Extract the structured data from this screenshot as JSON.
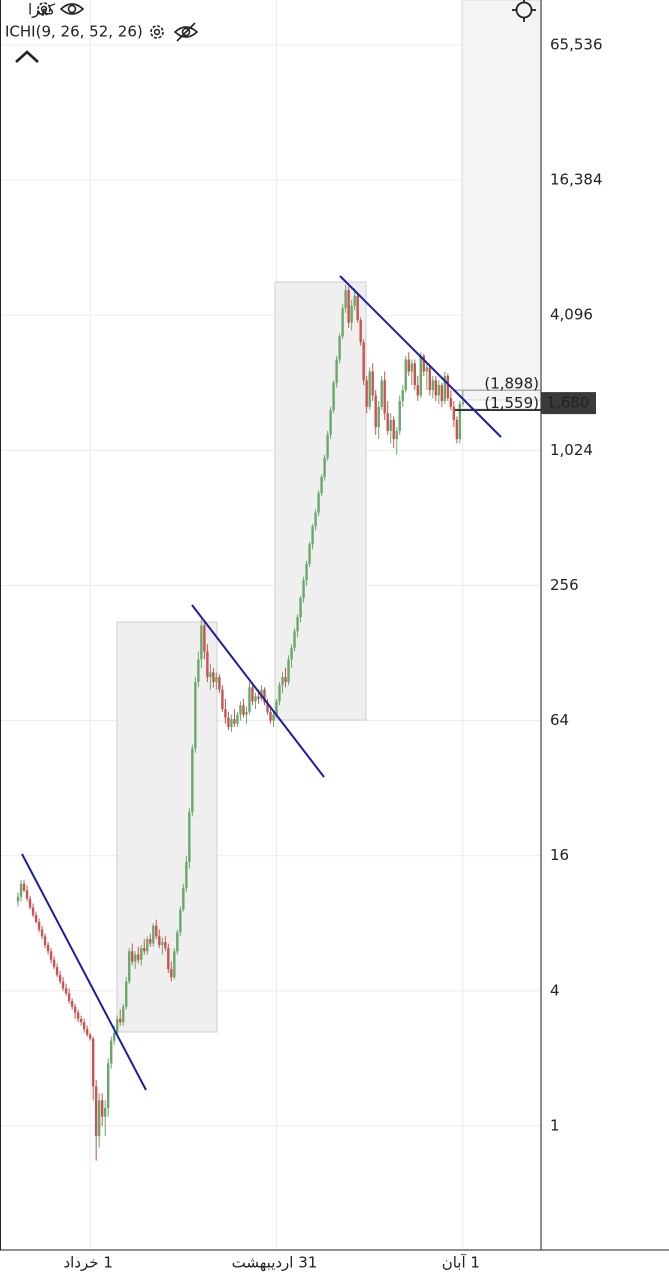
{
  "chart_data": {
    "type": "candlestick",
    "title": "کفرا",
    "subtitle": "ICHI(9, 26, 52, 26)",
    "log_scale": true,
    "grid": true,
    "up_color": "#6aa86a",
    "down_color": "#c9534f",
    "xlim": [
      0,
      180
    ],
    "xticks": [
      {
        "value": 30,
        "label": "1 خرداد"
      },
      {
        "value": 92,
        "label": "31 اردیبهشت"
      },
      {
        "value": 154,
        "label": "1 آبان"
      }
    ],
    "ylim": [
      0.28,
      104000
    ],
    "yticks": [
      1,
      4,
      16,
      64,
      256,
      {
        "value": 1024,
        "label": "1,024"
      },
      {
        "value": 4096,
        "label": "4,096"
      },
      {
        "value": 16384,
        "label": "16,384"
      },
      {
        "value": 65536,
        "label": "65,536"
      }
    ],
    "price_lines": [
      {
        "value": 1898,
        "label": "(1,898)"
      },
      {
        "value": 1559,
        "label": "(1,559)"
      }
    ],
    "last_price": {
      "value": 1680,
      "label": "1,680"
    },
    "x": [
      6,
      7,
      8,
      9,
      10,
      11,
      12,
      13,
      14,
      15,
      16,
      17,
      18,
      19,
      20,
      21,
      22,
      23,
      24,
      25,
      26,
      27,
      28,
      29,
      30,
      31,
      32,
      33,
      34,
      35,
      36,
      37,
      38,
      39,
      40,
      41,
      42,
      43,
      44,
      45,
      46,
      47,
      48,
      49,
      50,
      51,
      52,
      53,
      54,
      55,
      56,
      57,
      58,
      59,
      60,
      61,
      62,
      63,
      64,
      65,
      66,
      67,
      68,
      69,
      70,
      71,
      72,
      73,
      74,
      75,
      76,
      77,
      78,
      79,
      80,
      81,
      82,
      83,
      84,
      85,
      86,
      87,
      88,
      89,
      90,
      91,
      92,
      93,
      94,
      95,
      96,
      97,
      98,
      99,
      100,
      101,
      102,
      103,
      104,
      105,
      106,
      107,
      108,
      109,
      110,
      111,
      112,
      113,
      114,
      115,
      116,
      117,
      118,
      119,
      120,
      121,
      122,
      123,
      124,
      125,
      126,
      127,
      128,
      129,
      130,
      131,
      132,
      133,
      134,
      135,
      136,
      137,
      138,
      139,
      140,
      141,
      142,
      143,
      144,
      145,
      146,
      147,
      148,
      149,
      150,
      151,
      152,
      153,
      154
    ],
    "open": [
      10,
      10.5,
      12,
      11.2,
      10.3,
      9.4,
      8.7,
      8.1,
      7.5,
      7,
      6.4,
      6,
      5.5,
      5.1,
      4.7,
      4.4,
      4.1,
      3.9,
      3.6,
      3.4,
      3.2,
      3.0,
      2.9,
      2.7,
      2.55,
      2.45,
      1.5,
      0.9,
      1.3,
      1.1,
      1.2,
      1.9,
      2.4,
      2.6,
      3.0,
      2.9,
      3.4,
      4.4,
      6.0,
      5.4,
      5.8,
      5.5,
      6.2,
      6.0,
      6.8,
      6.5,
      7.8,
      7.0,
      6.4,
      6.6,
      6.2,
      5.0,
      4.6,
      6.0,
      7.3,
      9.2,
      11.5,
      15,
      25,
      48,
      95,
      120,
      170,
      130,
      100,
      105,
      95,
      100,
      88,
      72,
      66,
      60,
      65,
      62,
      68,
      75,
      68,
      70,
      90,
      78,
      82,
      80,
      88,
      77,
      70,
      64,
      68,
      78,
      92,
      100,
      95,
      120,
      135,
      160,
      185,
      225,
      270,
      320,
      390,
      470,
      540,
      660,
      780,
      950,
      1200,
      1550,
      2050,
      2600,
      3300,
      4400,
      5300,
      3800,
      4500,
      5000,
      3900,
      3100,
      2100,
      1600,
      2300,
      1800,
      1300,
      1600,
      2100,
      1500,
      1250,
      1400,
      1150,
      1250,
      1700,
      1900,
      2600,
      2300,
      2500,
      2000,
      1800,
      2700,
      2300,
      2400,
      1900,
      2100,
      1800,
      2000,
      1700,
      2200,
      1750,
      1600,
      1400,
      1150,
      1650
    ],
    "high": [
      11,
      12.5,
      12.5,
      11.8,
      10.6,
      9.8,
      9,
      8.4,
      7.8,
      7.2,
      6.6,
      6.2,
      5.7,
      5.3,
      4.9,
      4.6,
      4.3,
      4.1,
      3.7,
      3.5,
      3.3,
      3.1,
      3.0,
      2.8,
      2.6,
      2.5,
      1.6,
      1.4,
      1.4,
      1.3,
      2.0,
      2.5,
      2.8,
      3.1,
      3.3,
      3.5,
      4.6,
      6.2,
      6.5,
      6.0,
      6.3,
      6.4,
      6.8,
      7.0,
      7.2,
      8.0,
      8.3,
      7.5,
      6.9,
      7.0,
      6.5,
      5.4,
      6.2,
      7.5,
      9.5,
      12,
      16,
      26,
      50,
      100,
      130,
      180,
      175,
      140,
      115,
      110,
      105,
      103,
      92,
      80,
      70,
      68,
      72,
      70,
      78,
      80,
      74,
      95,
      95,
      85,
      88,
      92,
      90,
      80,
      74,
      70,
      80,
      95,
      105,
      110,
      125,
      140,
      165,
      190,
      230,
      280,
      330,
      400,
      480,
      560,
      680,
      800,
      980,
      1250,
      1600,
      2100,
      2700,
      3400,
      4600,
      5600,
      5500,
      4800,
      5400,
      5200,
      4000,
      3200,
      2200,
      2400,
      2500,
      1900,
      1700,
      2200,
      2300,
      1700,
      1500,
      1450,
      1300,
      1800,
      2000,
      2700,
      2800,
      2600,
      2600,
      2200,
      2800,
      2750,
      2500,
      2450,
      2200,
      2200,
      2100,
      2050,
      2300,
      2250,
      1900,
      1700,
      1450,
      1700,
      1900
    ],
    "low": [
      9.5,
      10,
      11,
      10,
      9.2,
      8.5,
      8,
      7.3,
      6.8,
      6.2,
      5.8,
      5.3,
      5,
      4.6,
      4.3,
      4,
      3.8,
      3.5,
      3.3,
      3.0,
      2.9,
      2.8,
      2.6,
      2.5,
      2.4,
      1.3,
      0.7,
      0.8,
      1.0,
      0.9,
      1.1,
      1.8,
      2.3,
      2.5,
      2.8,
      2.8,
      3.3,
      4.3,
      5.2,
      5.0,
      5.3,
      5.2,
      5.8,
      5.8,
      6.3,
      6.3,
      6.8,
      6.2,
      5.8,
      6.0,
      4.8,
      4.4,
      4.5,
      5.8,
      7.0,
      9,
      11,
      14,
      24,
      46,
      90,
      110,
      120,
      95,
      88,
      90,
      88,
      85,
      70,
      62,
      58,
      57,
      60,
      60,
      64,
      66,
      62,
      68,
      75,
      72,
      76,
      78,
      75,
      68,
      62,
      60,
      66,
      75,
      85,
      90,
      92,
      110,
      130,
      150,
      175,
      215,
      255,
      310,
      370,
      450,
      520,
      640,
      750,
      920,
      1150,
      1500,
      1950,
      2500,
      3200,
      4200,
      3600,
      3500,
      4300,
      3800,
      3000,
      2000,
      1500,
      1550,
      1700,
      1200,
      1150,
      1550,
      1400,
      1200,
      1100,
      1050,
      980,
      1200,
      1600,
      1850,
      2200,
      2000,
      1900,
      1700,
      1750,
      2200,
      1900,
      1800,
      1750,
      1700,
      1650,
      1600,
      1650,
      1700,
      1550,
      1300,
      1100,
      1100,
      1600
    ],
    "close": [
      10.5,
      12,
      11.2,
      10.3,
      9.4,
      8.7,
      8.1,
      7.5,
      7,
      6.4,
      6,
      5.5,
      5.1,
      4.7,
      4.4,
      4.1,
      3.9,
      3.6,
      3.4,
      3.2,
      3.0,
      2.9,
      2.7,
      2.55,
      2.45,
      1.5,
      0.9,
      1.3,
      1.1,
      1.2,
      1.9,
      2.4,
      2.6,
      3.0,
      2.9,
      3.4,
      4.4,
      6.0,
      5.4,
      5.8,
      5.5,
      6.2,
      6.0,
      6.8,
      6.5,
      7.8,
      7.0,
      6.4,
      6.6,
      6.2,
      5.0,
      4.6,
      6.0,
      7.3,
      9.2,
      11.5,
      15,
      25,
      48,
      95,
      120,
      170,
      130,
      100,
      105,
      95,
      100,
      88,
      72,
      66,
      60,
      65,
      62,
      68,
      75,
      68,
      70,
      90,
      78,
      82,
      80,
      88,
      77,
      70,
      64,
      68,
      78,
      92,
      100,
      95,
      120,
      135,
      160,
      185,
      225,
      270,
      320,
      390,
      470,
      540,
      660,
      780,
      950,
      1200,
      1550,
      2050,
      2600,
      3300,
      4400,
      5300,
      3800,
      4500,
      5000,
      3900,
      3100,
      2100,
      1600,
      2300,
      1800,
      1300,
      1600,
      2100,
      1500,
      1250,
      1400,
      1150,
      1250,
      1700,
      1900,
      2600,
      2300,
      2500,
      2000,
      1800,
      2700,
      2300,
      2400,
      1900,
      2100,
      1800,
      2000,
      1700,
      2200,
      1750,
      1600,
      1400,
      1150,
      1650,
      1680
    ]
  }
}
